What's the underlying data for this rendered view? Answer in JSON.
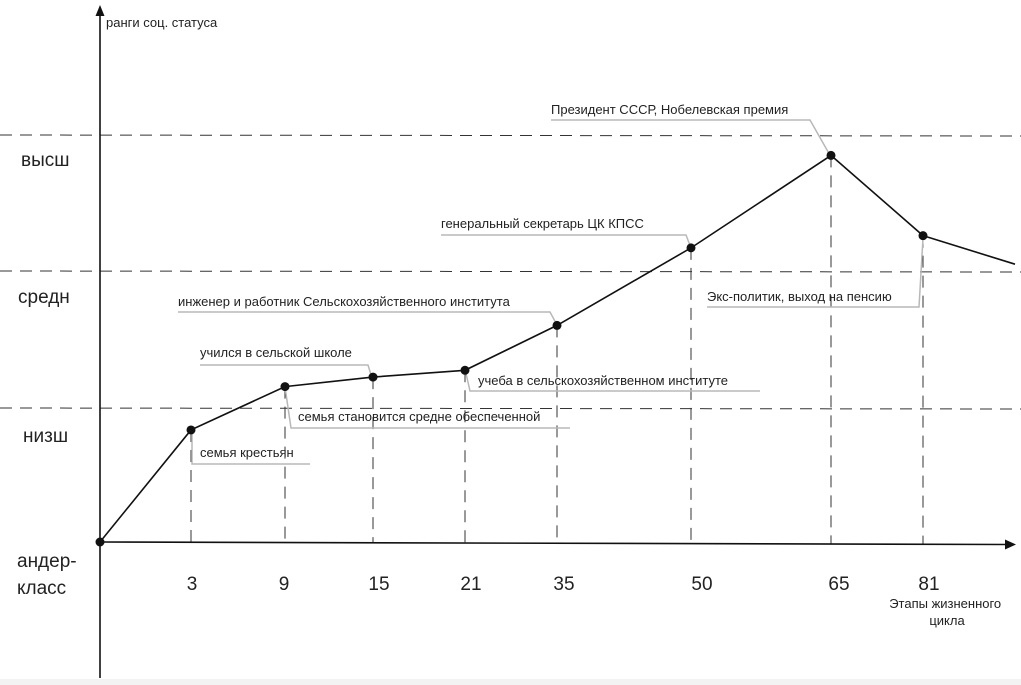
{
  "chart_data": {
    "type": "line",
    "ylabel": "ранги соц. статуса",
    "xlabel": "Этапы жизненного цикла",
    "levels": [
      "андер-класс",
      "низш",
      "средн",
      "высш"
    ],
    "categories": [
      "0",
      "3",
      "9",
      "15",
      "21",
      "35",
      "50",
      "65",
      "81"
    ],
    "tick_labels": [
      "3",
      "9",
      "15",
      "21",
      "35",
      "50",
      "65",
      "81"
    ],
    "ylim": [
      0,
      3.1
    ],
    "grid": "dashed lines at level boundaries 1, 2 and 3; dashed drop lines from each point to the x-axis",
    "series": [
      {
        "values": [
          0,
          0.83,
          1.15,
          1.22,
          1.27,
          1.6,
          2.17,
          2.85,
          2.26
        ]
      }
    ],
    "trailing_segment_end_value": 2.05,
    "annotations": [
      {
        "text": "семья крестьян",
        "point": 1
      },
      {
        "text": "учился в сельской школе",
        "point": 2
      },
      {
        "text": "семья становится средне обеспеченной",
        "point": 3
      },
      {
        "text": "учеба в сельскохозяйственном институте",
        "point": 4
      },
      {
        "text": "инженер и работник Сельскохозяйственного института",
        "point": 5
      },
      {
        "text": "генеральный секретарь ЦК КПСС",
        "point": 6
      },
      {
        "text": "Президент СССР, Нобелевская премия",
        "point": 7
      },
      {
        "text": "Экс-политик, выход на пенсию",
        "point": 8
      }
    ]
  }
}
